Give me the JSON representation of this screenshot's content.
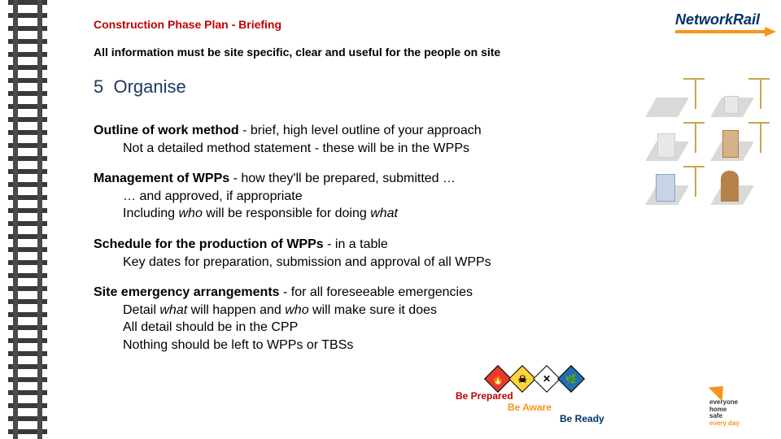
{
  "header": {
    "doc_title": "Construction Phase Plan - Briefing",
    "subtitle": "All information must be site specific, clear and useful for the people on site",
    "section_number": "5",
    "section_label": "Organise"
  },
  "logo": {
    "word1": "Network",
    "word2": "Rail",
    "accent_color": "#f7941d",
    "text_color": "#003366"
  },
  "bullets": {
    "b1": {
      "lead": "Outline of work method",
      "rest": " - brief, high level outline of your approach",
      "sub1": "Not a detailed method statement - these will be in the WPPs"
    },
    "b2": {
      "lead": "Management of WPPs",
      "rest": " - how they'll be prepared, submitted …",
      "sub1": "… and approved, if appropriate",
      "sub2_pre": "Including ",
      "sub2_i1": "who",
      "sub2_mid": " will be responsible for doing ",
      "sub2_i2": "what"
    },
    "b3": {
      "lead": "Schedule for the production of WPPs",
      "rest": " - in a table",
      "sub1": "Key dates for preparation, submission and approval of all WPPs"
    },
    "b4": {
      "lead": "Site emergency arrangements",
      "rest": " - for all foreseeable emergencies",
      "sub1_pre": "Detail ",
      "sub1_i1": "what",
      "sub1_mid": " will happen and ",
      "sub1_i2": "who",
      "sub1_post": " will make sure it does",
      "sub2": "All detail should be in the CPP",
      "sub3": "Nothing should be left to WPPs or TBSs"
    }
  },
  "be_ready": {
    "line1": "Be Prepared",
    "line2": "Be Aware",
    "line3": "Be Ready",
    "color_prepared": "#c00000",
    "color_aware": "#f7941d",
    "color_ready": "#003366"
  },
  "hazard_icons": {
    "flammable": "🔥",
    "toxic": "☠",
    "harmful": "✕",
    "env": "🌿"
  },
  "ehs": {
    "l1": "everyone",
    "l2": "home",
    "l3": "safe",
    "l4": "every day"
  },
  "colors": {
    "title_red": "#c00000",
    "heading_navy": "#1f3864",
    "rail_grey": "#4a4a4a",
    "orange": "#f7941d"
  }
}
